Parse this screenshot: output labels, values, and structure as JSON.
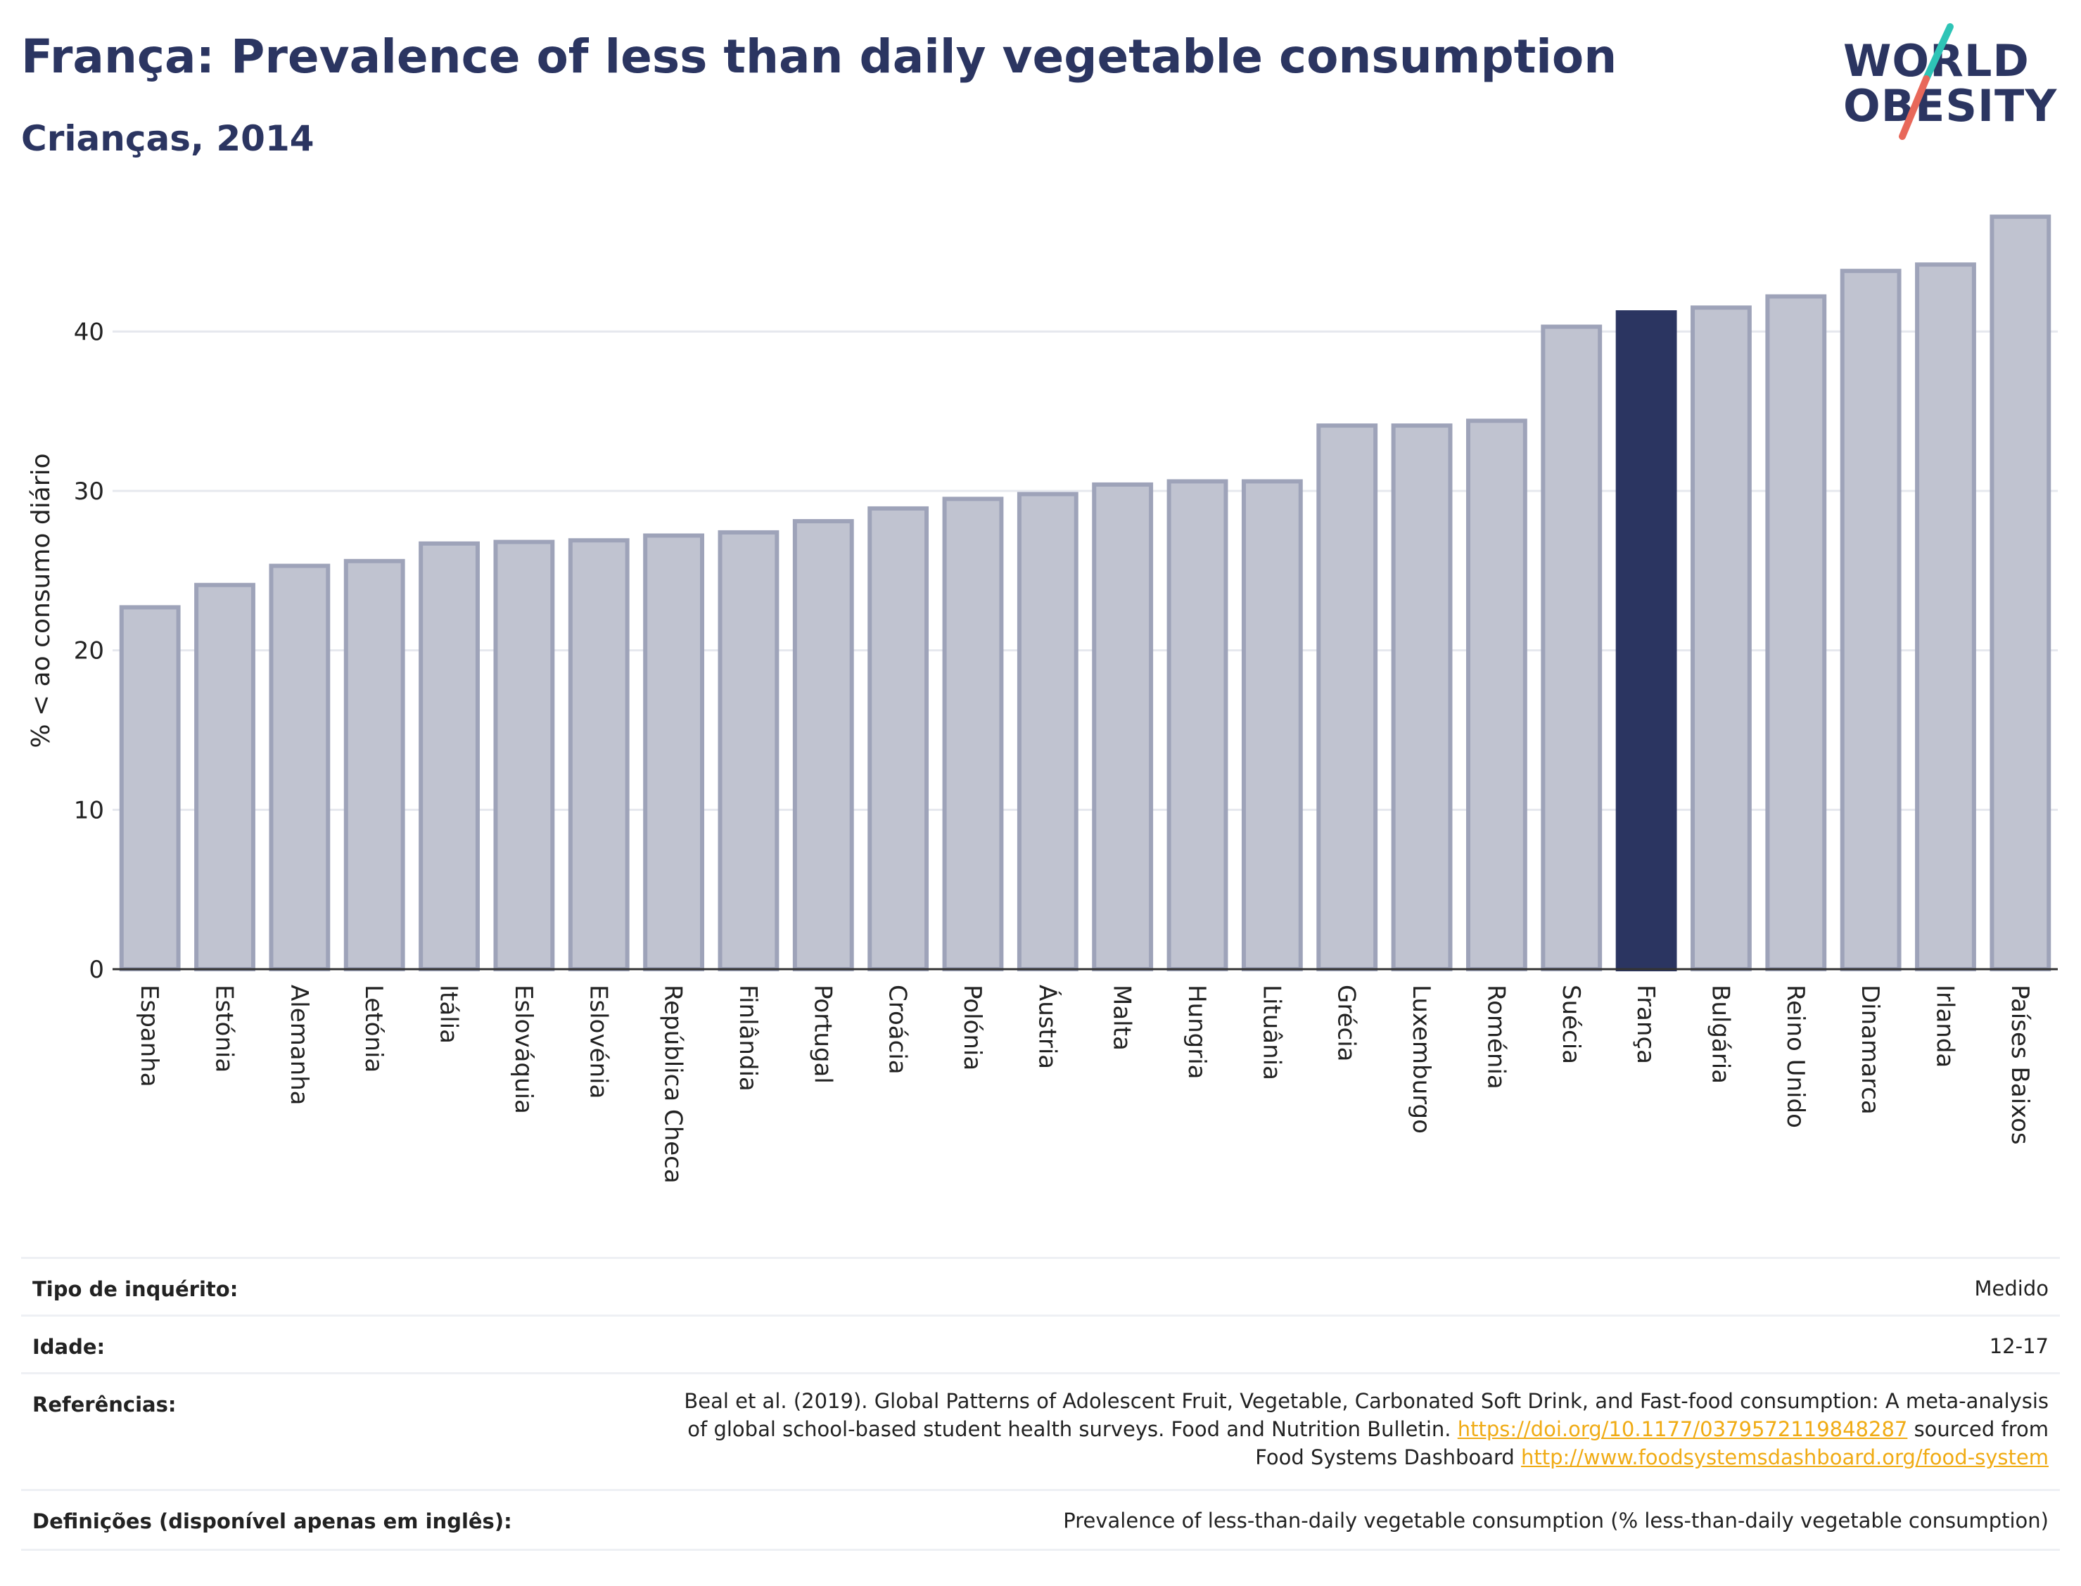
{
  "header": {
    "title": "França: Prevalence of less than daily vegetable consumption",
    "subtitle": "Crianças, 2014"
  },
  "logo": {
    "line1": "WORLD",
    "line2": "OBESITY",
    "colors": {
      "text": "#2b3561",
      "slash_teal": "#2ec4b6",
      "slash_coral": "#e8685a"
    }
  },
  "colors": {
    "bar": "#c0c3d0",
    "bar_border": "#9ea3b9",
    "highlight": "#2b3561",
    "grid": "#e6e8ee",
    "link": "#f0ab14"
  },
  "chart_data": {
    "type": "bar",
    "ylabel": "% < ao consumo diário",
    "ylim": [
      0,
      48
    ],
    "yticks": [
      0,
      10,
      20,
      30,
      40
    ],
    "grid": true,
    "highlight": "França",
    "categories": [
      "Espanha",
      "Estónia",
      "Alemanha",
      "Letónia",
      "Itália",
      "Eslováquia",
      "Eslovénia",
      "República Checa",
      "Finlândia",
      "Portugal",
      "Croácia",
      "Polónia",
      "Áustria",
      "Malta",
      "Hungria",
      "Lituânia",
      "Grécia",
      "Luxemburgo",
      "Roménia",
      "Suécia",
      "França",
      "Bulgária",
      "Reino Unido",
      "Dinamarca",
      "Irlanda",
      "Países Baixos"
    ],
    "values": [
      22.7,
      24.1,
      25.3,
      25.6,
      26.7,
      26.8,
      26.9,
      27.2,
      27.4,
      28.1,
      28.9,
      29.5,
      29.8,
      30.4,
      30.6,
      30.6,
      34.1,
      34.1,
      34.4,
      40.3,
      41.2,
      41.5,
      42.2,
      43.8,
      44.2,
      47.2
    ]
  },
  "meta": {
    "survey_label": "Tipo de inquérito:",
    "survey_value": "Medido",
    "age_label": "Idade:",
    "age_value": "12-17",
    "ref_label": "Referências:",
    "ref_text_1": "Beal et al. (2019). Global Patterns of Adolescent Fruit, Vegetable, Carbonated Soft Drink, and Fast-food consumption: A meta-analysis",
    "ref_text_2": "of global school-based student health surveys. Food and Nutrition Bulletin.",
    "ref_link_1": "https://doi.org/10.1177/0379572119848287",
    "ref_text_3": "sourced from",
    "ref_text_4": "Food Systems Dashboard",
    "ref_link_2": "http://www.foodsystemsdashboard.org/food-system",
    "def_label": "Definições (disponível apenas em inglês):",
    "def_value": "Prevalence of less-than-daily vegetable consumption (% less-than-daily vegetable consumption)"
  }
}
